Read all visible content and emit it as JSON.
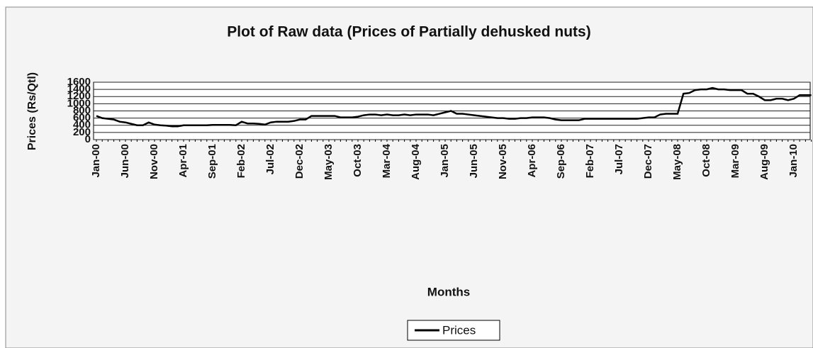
{
  "chart_data": {
    "type": "line",
    "title": "Plot of Raw data (Prices of Partially dehusked nuts)",
    "x_label": "Months",
    "y_label": "Prices (Rs/Qtl)",
    "categories": [
      "Jan-00",
      null,
      null,
      null,
      null,
      "Jun-00",
      null,
      null,
      null,
      null,
      "Nov-00",
      null,
      null,
      null,
      null,
      "Apr-01",
      null,
      null,
      null,
      null,
      "Sep-01",
      null,
      null,
      null,
      null,
      "Feb-02",
      null,
      null,
      null,
      null,
      "Jul-02",
      null,
      null,
      null,
      null,
      "Dec-02",
      null,
      null,
      null,
      null,
      "May-03",
      null,
      null,
      null,
      null,
      "Oct-03",
      null,
      null,
      null,
      null,
      "Mar-04",
      null,
      null,
      null,
      null,
      "Aug-04",
      null,
      null,
      null,
      null,
      "Jan-05",
      null,
      null,
      null,
      null,
      "Jun-05",
      null,
      null,
      null,
      null,
      "Nov-05",
      null,
      null,
      null,
      null,
      "Apr-06",
      null,
      null,
      null,
      null,
      "Sep-06",
      null,
      null,
      null,
      null,
      "Feb-07",
      null,
      null,
      null,
      null,
      "Jul-07",
      null,
      null,
      null,
      null,
      "Dec-07",
      null,
      null,
      null,
      null,
      "May-08",
      null,
      null,
      null,
      null,
      "Oct-08",
      null,
      null,
      null,
      null,
      "Mar-09",
      null,
      null,
      null,
      null,
      "Aug-09",
      null,
      null,
      null,
      null,
      "Jan-10",
      null,
      null,
      null
    ],
    "series": [
      {
        "name": "Prices",
        "color": "#000000",
        "values": [
          660,
          600,
          580,
          560,
          500,
          480,
          440,
          400,
          400,
          480,
          420,
          400,
          390,
          370,
          370,
          400,
          400,
          400,
          400,
          400,
          410,
          410,
          410,
          410,
          400,
          500,
          450,
          450,
          440,
          420,
          480,
          500,
          500,
          500,
          520,
          560,
          560,
          660,
          660,
          660,
          660,
          660,
          620,
          620,
          620,
          640,
          680,
          700,
          700,
          680,
          700,
          680,
          680,
          700,
          680,
          700,
          700,
          700,
          680,
          720,
          760,
          800,
          720,
          720,
          700,
          680,
          660,
          640,
          620,
          600,
          600,
          580,
          580,
          600,
          600,
          620,
          620,
          620,
          600,
          560,
          540,
          540,
          540,
          540,
          580,
          580,
          580,
          580,
          580,
          580,
          580,
          580,
          580,
          580,
          600,
          620,
          620,
          700,
          720,
          720,
          720,
          1280,
          1300,
          1380,
          1400,
          1400,
          1440,
          1400,
          1400,
          1380,
          1380,
          1380,
          1280,
          1280,
          1200,
          1100,
          1100,
          1140,
          1140,
          1100,
          1140,
          1240,
          1240,
          1240
        ]
      }
    ],
    "ylim": [
      0,
      1600
    ],
    "yticks": [
      0,
      200,
      400,
      600,
      800,
      1000,
      1200,
      1400,
      1600
    ],
    "grid": true,
    "legend": "bottom"
  }
}
